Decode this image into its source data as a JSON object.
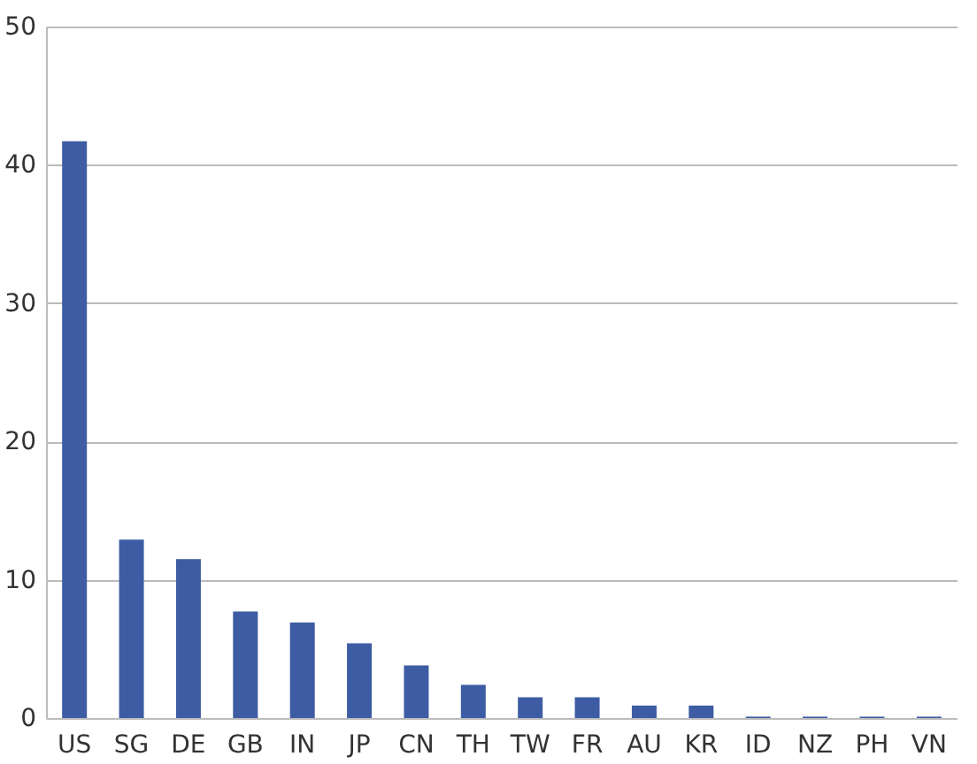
{
  "chart_data": {
    "type": "bar",
    "categories": [
      "US",
      "SG",
      "DE",
      "GB",
      "IN",
      "JP",
      "CN",
      "TH",
      "TW",
      "FR",
      "AU",
      "KR",
      "ID",
      "NZ",
      "PH",
      "VN"
    ],
    "values": [
      41.7,
      12.9,
      11.5,
      7.7,
      6.9,
      5.4,
      3.8,
      2.4,
      1.5,
      1.5,
      0.9,
      0.9,
      0.1,
      0.1,
      0.1,
      0.1
    ],
    "color": "#3d5ca3",
    "ylim": [
      0,
      50
    ],
    "yticks": [
      0,
      10,
      20,
      30,
      40,
      50
    ],
    "grid": "y"
  }
}
